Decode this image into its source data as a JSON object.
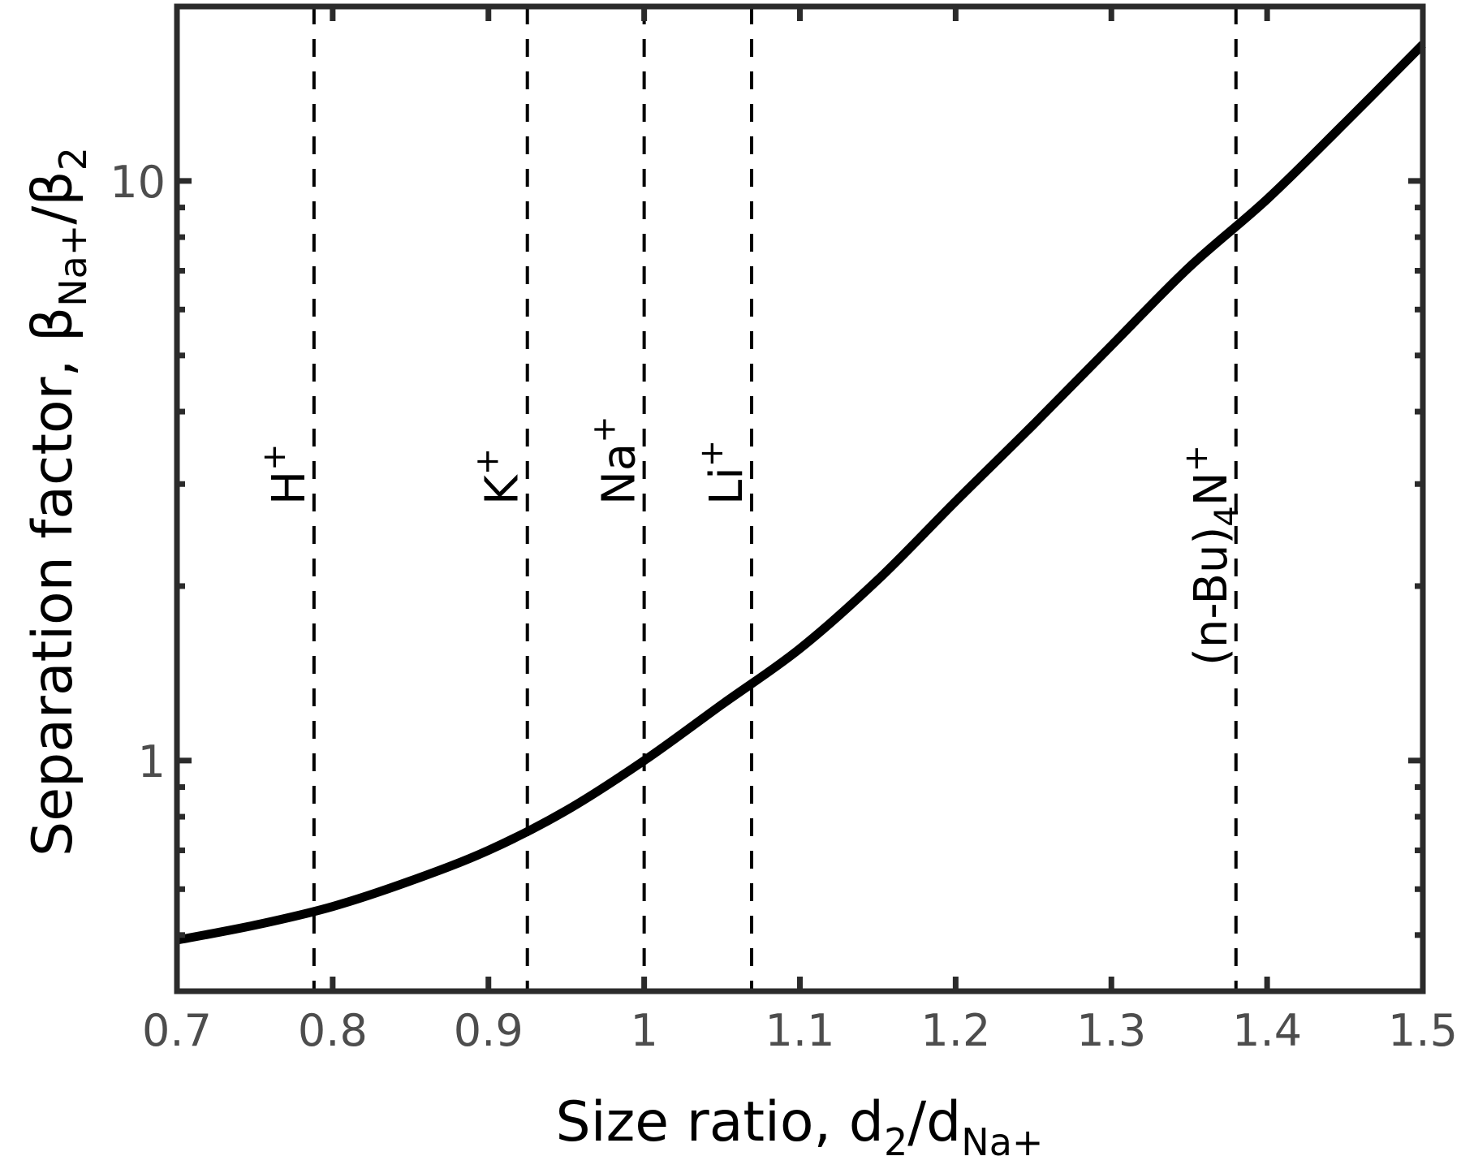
{
  "chart_data": {
    "type": "line",
    "title": "",
    "xlabel": "Size ratio, d2/dNa+",
    "xlabel_parts": {
      "main": "Size ratio, d",
      "sub1": "2",
      "mid": "/d",
      "sub2": "Na+"
    },
    "ylabel": "Separation factor, βNa+/β2",
    "ylabel_parts": {
      "main": "Separation factor, β",
      "sub1": "Na+",
      "mid": "/β",
      "sub2": "2"
    },
    "xlim": [
      0.7,
      1.5
    ],
    "ylim": [
      0.4,
      20
    ],
    "yscale": "log",
    "grid": false,
    "legend": null,
    "x_ticks": [
      0.7,
      0.8,
      0.9,
      1.0,
      1.1,
      1.2,
      1.3,
      1.4,
      1.5
    ],
    "x_tick_labels": [
      "0.7",
      "0.8",
      "0.9",
      "1",
      "1.1",
      "1.2",
      "1.3",
      "1.4",
      "1.5"
    ],
    "y_ticks": [
      1,
      10
    ],
    "y_tick_labels": [
      "1",
      "10"
    ],
    "y_minor_ticks": [
      0.5,
      0.6,
      0.7,
      0.8,
      0.9,
      2,
      3,
      4,
      5,
      6,
      7,
      8,
      9,
      20
    ],
    "series": [
      {
        "name": "Separation factor",
        "style": "solid",
        "color": "#000000",
        "x": [
          0.7,
          0.75,
          0.8,
          0.85,
          0.9,
          0.95,
          1.0,
          1.05,
          1.1,
          1.15,
          1.2,
          1.25,
          1.3,
          1.35,
          1.4,
          1.45,
          1.5
        ],
        "y": [
          0.49,
          0.52,
          0.56,
          0.62,
          0.7,
          0.82,
          1.0,
          1.25,
          1.56,
          2.05,
          2.8,
          3.8,
          5.2,
          7.1,
          9.3,
          12.6,
          17.2
        ]
      }
    ],
    "reference_lines": [
      {
        "label": "H+",
        "base": "H",
        "sup": "+",
        "x": 0.788,
        "style": "dashed"
      },
      {
        "label": "K+",
        "base": "K",
        "sup": "+",
        "x": 0.925,
        "style": "dashed"
      },
      {
        "label": "Na+",
        "base": "Na",
        "sup": "+",
        "x": 1.0,
        "style": "dashed"
      },
      {
        "label": "Li+",
        "base": "Li",
        "sup": "+",
        "x": 1.069,
        "style": "dashed"
      },
      {
        "label": "(n-Bu)4N+",
        "base": "(n-Bu)",
        "sub": "4",
        "base2": "N",
        "sup": "+",
        "x": 1.38,
        "style": "dashed"
      }
    ]
  },
  "colors": {
    "axis": "#2b2b2b",
    "tick_label": "#4d4d4d",
    "curve": "#000000",
    "ref_line": "#000000",
    "background": "#ffffff"
  }
}
